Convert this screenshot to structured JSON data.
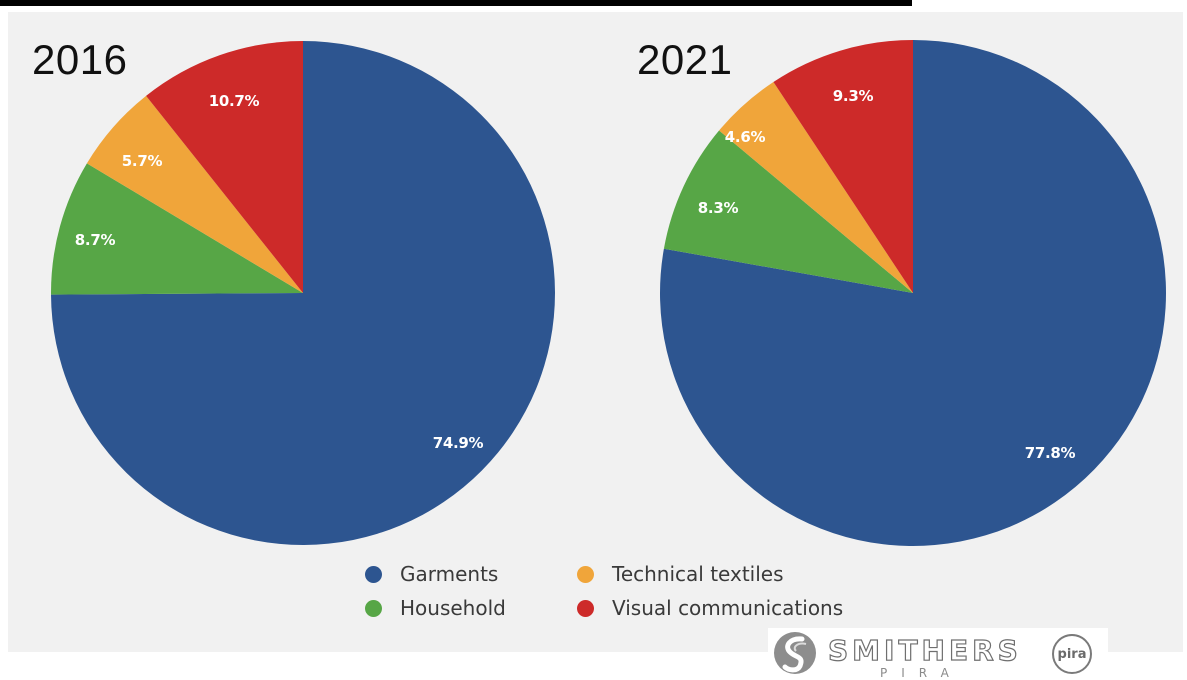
{
  "colors": {
    "Garments": "#2d5590",
    "Household": "#57a646",
    "Technical textiles": "#f0a53a",
    "Visual communications": "#cd2a29"
  },
  "chart_data": [
    {
      "type": "pie",
      "title": "2016",
      "slices": [
        {
          "name": "Garments",
          "value": 74.9,
          "label": "74.9%"
        },
        {
          "name": "Household",
          "value": 8.7,
          "label": "8.7%"
        },
        {
          "name": "Technical textiles",
          "value": 5.7,
          "label": "5.7%"
        },
        {
          "name": "Visual communications",
          "value": 10.7,
          "label": "10.7%"
        }
      ]
    },
    {
      "type": "pie",
      "title": "2021",
      "slices": [
        {
          "name": "Garments",
          "value": 77.8,
          "label": "77.8%"
        },
        {
          "name": "Household",
          "value": 8.3,
          "label": "8.3%"
        },
        {
          "name": "Technical textiles",
          "value": 4.6,
          "label": "4.6%"
        },
        {
          "name": "Visual communications",
          "value": 9.3,
          "label": "9.3%"
        }
      ]
    }
  ],
  "legend": {
    "items": [
      "Garments",
      "Technical textiles",
      "Household",
      "Visual communications"
    ],
    "placement": "bottom-center"
  },
  "logo": {
    "brand": "SMITHERS",
    "sub": "PIRA",
    "badge": "pira"
  }
}
